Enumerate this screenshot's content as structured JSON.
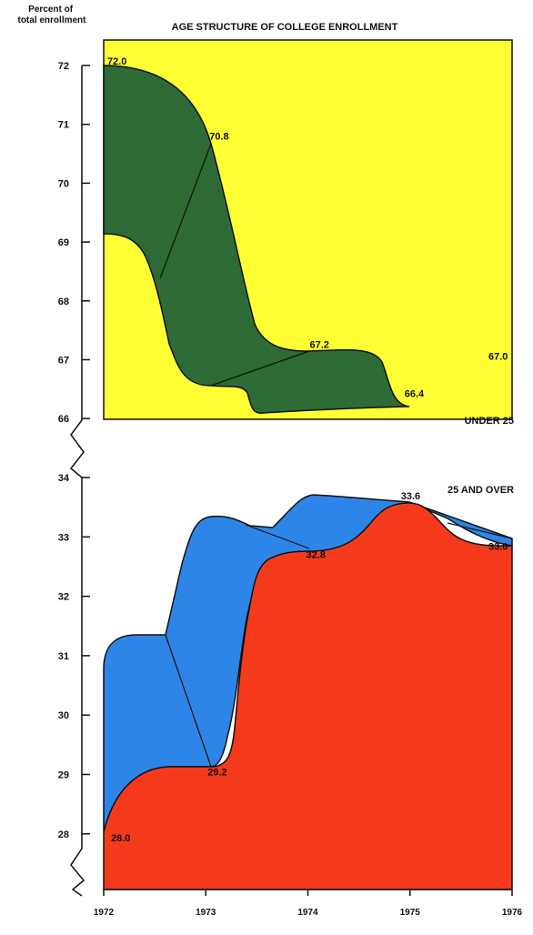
{
  "colors": {
    "under25_fill": "#FFFF33",
    "under25_band": "#2E6B37",
    "over25_fill": "#F53A1C",
    "over25_band": "#2E85E8",
    "axis": "#111111"
  },
  "chart_data": [
    {
      "type": "area",
      "title": "AGE STRUCTURE OF COLLEGE ENROLLMENT",
      "ylabel": "Percent of total enrollment",
      "series_label": "UNDER 25",
      "x": [
        1972,
        1973,
        1974,
        1975,
        1976
      ],
      "values": [
        72.0,
        70.8,
        67.2,
        66.4,
        67.0
      ],
      "point_labels": [
        "72.0",
        "70.8",
        "67.2",
        "66.4",
        "67.0"
      ],
      "ylim": [
        66,
        72
      ],
      "yticks": [
        "66",
        "67",
        "68",
        "69",
        "70",
        "71",
        "72"
      ]
    },
    {
      "type": "area",
      "series_label": "25 AND OVER",
      "x": [
        1972,
        1973,
        1974,
        1975,
        1976
      ],
      "values": [
        28.0,
        29.2,
        32.8,
        33.6,
        33.0
      ],
      "point_labels": [
        "28.0",
        "29.2",
        "32.8",
        "33.6",
        "33.0"
      ],
      "ylim": [
        28,
        34
      ],
      "yticks": [
        "28",
        "29",
        "30",
        "31",
        "32",
        "33",
        "34"
      ],
      "xticks": [
        "1972",
        "1973",
        "1974",
        "1975",
        "1976"
      ]
    }
  ]
}
